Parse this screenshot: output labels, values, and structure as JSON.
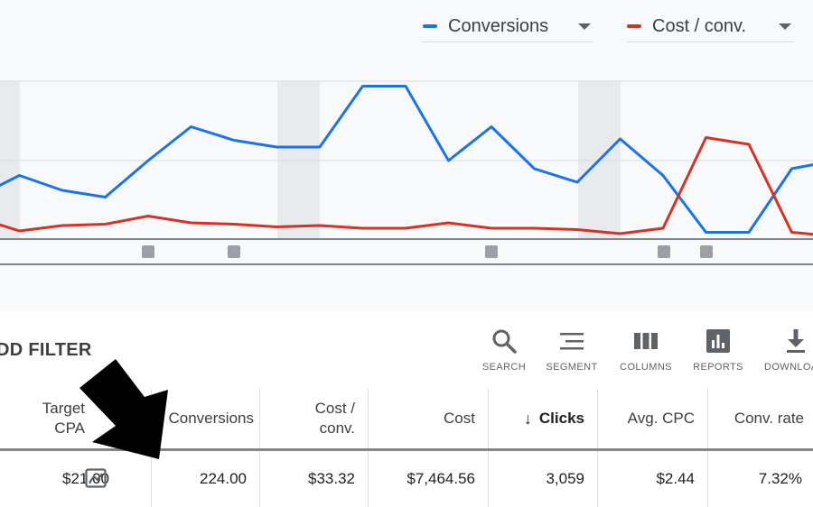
{
  "chart": {
    "metrics": [
      {
        "label": "Conversions",
        "color": "#1a73e8"
      },
      {
        "label": "Cost / conv.",
        "color": "#d93025"
      }
    ]
  },
  "chart_data": {
    "type": "line",
    "series": [
      {
        "name": "Conversions",
        "color": "#1a73e8",
        "values": [
          31,
          47,
          36,
          31,
          58,
          83,
          73,
          68,
          68,
          113,
          113,
          58,
          83,
          52,
          42,
          74,
          47,
          5,
          5,
          52,
          58
        ]
      },
      {
        "name": "Cost / conv.",
        "color": "#d93025",
        "values": [
          16,
          6,
          10,
          11,
          17,
          12,
          11,
          9,
          10,
          8,
          8,
          12,
          8,
          8,
          7,
          4,
          8,
          75,
          70,
          5,
          2
        ]
      }
    ],
    "markers_count": 6
  },
  "toolbar": {
    "add_filter": "DD FILTER",
    "tools": [
      {
        "label": "SEARCH",
        "icon": "search-icon"
      },
      {
        "label": "SEGMENT",
        "icon": "segment-icon"
      },
      {
        "label": "COLUMNS",
        "icon": "columns-icon"
      },
      {
        "label": "REPORTS",
        "icon": "reports-icon"
      },
      {
        "label": "DOWNLOA",
        "icon": "download-icon"
      }
    ]
  },
  "table": {
    "headers": {
      "target_cpa_1": "Target",
      "target_cpa_2": "CPA",
      "conversions": "Conversions",
      "cost_conv_1": "Cost /",
      "cost_conv_2": "conv.",
      "cost": "Cost",
      "clicks": "Clicks",
      "avg_cpc": "Avg. CPC",
      "conv_rate": "Conv. rate"
    },
    "row": {
      "target_cpa": "$21.00",
      "conversions": "224.00",
      "cost_conv": "$33.32",
      "cost": "$7,464.56",
      "clicks": "3,059",
      "avg_cpc": "$2.44",
      "conv_rate": "7.32%"
    }
  }
}
